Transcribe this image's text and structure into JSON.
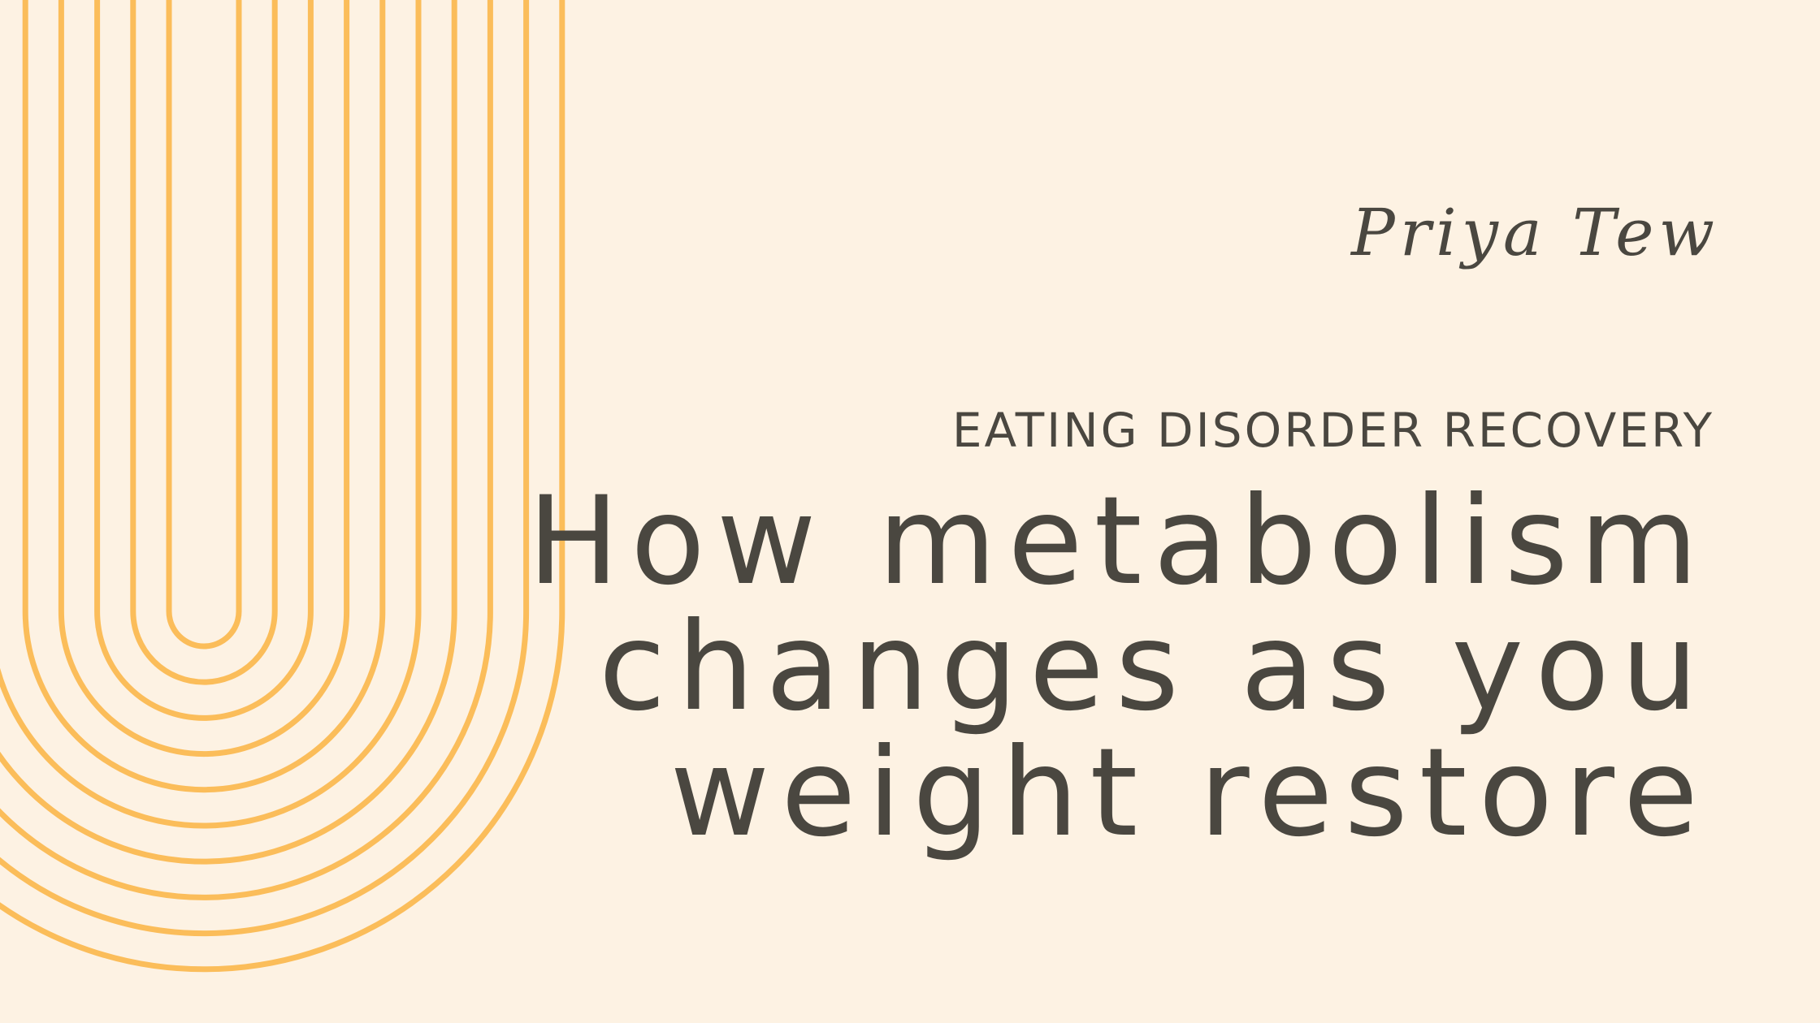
{
  "header": {
    "brand": "Priya Tew",
    "category": "EATING DISORDER RECOVERY"
  },
  "title": {
    "lines": [
      "How metabolism",
      "changes as you",
      "weight restore"
    ]
  }
}
